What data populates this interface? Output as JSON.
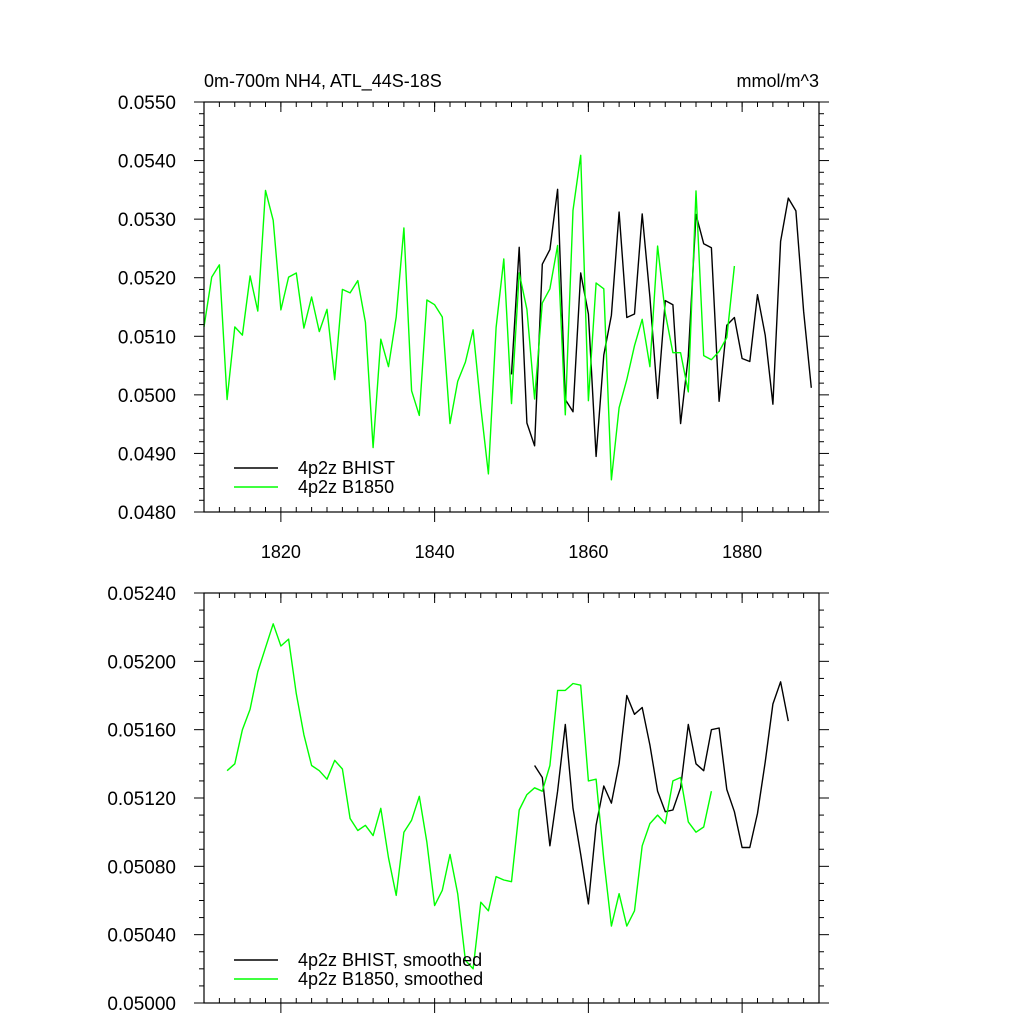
{
  "chart_data": [
    {
      "type": "line",
      "title": "0m-700m NH4, ATL_44S-18S",
      "units": "mmol/m^3",
      "xlabel": "",
      "ylabel": "",
      "xlim": [
        1810,
        1890
      ],
      "ylim": [
        0.048,
        0.055
      ],
      "xticks": [
        1820,
        1840,
        1860,
        1880
      ],
      "xtick_labels": [
        "1820",
        "1840",
        "1860",
        "1880"
      ],
      "yticks": [
        0.048,
        0.049,
        0.05,
        0.051,
        0.052,
        0.053,
        0.054,
        0.055
      ],
      "ytick_labels": [
        "0.0480",
        "0.0490",
        "0.0500",
        "0.0510",
        "0.0520",
        "0.0530",
        "0.0540",
        "0.0550"
      ],
      "legend_position": "bottom-left",
      "series": [
        {
          "name": "4p2z BHIST",
          "color": "#000000",
          "x": [
            1850,
            1851,
            1852,
            1853,
            1854,
            1855,
            1856,
            1857,
            1858,
            1859,
            1860,
            1861,
            1862,
            1863,
            1864,
            1865,
            1866,
            1867,
            1868,
            1869,
            1870,
            1871,
            1872,
            1873,
            1874,
            1875,
            1876,
            1877,
            1878,
            1879,
            1880,
            1881,
            1882,
            1883,
            1884,
            1885,
            1886,
            1887,
            1888,
            1889
          ],
          "values": [
            0.05035,
            0.05252,
            0.04952,
            0.04913,
            0.05223,
            0.05248,
            0.05351,
            0.04992,
            0.04971,
            0.05208,
            0.05138,
            0.04895,
            0.05068,
            0.05136,
            0.05312,
            0.05132,
            0.05138,
            0.05309,
            0.05167,
            0.04994,
            0.05161,
            0.05154,
            0.04951,
            0.05066,
            0.05308,
            0.05258,
            0.05251,
            0.04989,
            0.05119,
            0.05132,
            0.05062,
            0.05057,
            0.05171,
            0.05102,
            0.04984,
            0.05262,
            0.05336,
            0.05314,
            0.05143,
            0.05012
          ]
        },
        {
          "name": "4p2z B1850",
          "color": "#00ff00",
          "x": [
            1810,
            1811,
            1812,
            1813,
            1814,
            1815,
            1816,
            1817,
            1818,
            1819,
            1820,
            1821,
            1822,
            1823,
            1824,
            1825,
            1826,
            1827,
            1828,
            1829,
            1830,
            1831,
            1832,
            1833,
            1834,
            1835,
            1836,
            1837,
            1838,
            1839,
            1840,
            1841,
            1842,
            1843,
            1844,
            1845,
            1846,
            1847,
            1848,
            1849,
            1850,
            1851,
            1852,
            1853,
            1854,
            1855,
            1856,
            1857,
            1858,
            1859,
            1860,
            1861,
            1862,
            1863,
            1864,
            1865,
            1866,
            1867,
            1868,
            1869,
            1870,
            1871,
            1872,
            1873,
            1874,
            1875,
            1876,
            1877,
            1878,
            1879
          ],
          "values": [
            0.05116,
            0.05201,
            0.05222,
            0.04992,
            0.05116,
            0.05102,
            0.05203,
            0.05143,
            0.05349,
            0.05298,
            0.05145,
            0.05201,
            0.05208,
            0.05114,
            0.05167,
            0.05108,
            0.05146,
            0.05026,
            0.0518,
            0.05174,
            0.05195,
            0.05124,
            0.0491,
            0.05095,
            0.05048,
            0.05133,
            0.05285,
            0.05007,
            0.04965,
            0.05162,
            0.05154,
            0.05133,
            0.04951,
            0.05023,
            0.05056,
            0.05111,
            0.04979,
            0.04865,
            0.05115,
            0.05232,
            0.04985,
            0.05208,
            0.05146,
            0.04993,
            0.05157,
            0.05181,
            0.05255,
            0.04966,
            0.05315,
            0.05409,
            0.0499,
            0.05191,
            0.05181,
            0.04855,
            0.04978,
            0.05026,
            0.05084,
            0.05129,
            0.05048,
            0.05254,
            0.05139,
            0.05072,
            0.05072,
            0.05005,
            0.05348,
            0.05067,
            0.0506,
            0.05074,
            0.05098,
            0.0522
          ]
        }
      ]
    },
    {
      "type": "line",
      "title": "",
      "xlabel": "",
      "ylabel": "",
      "xlim": [
        1810,
        1890
      ],
      "ylim": [
        0.05,
        0.0524
      ],
      "xticks": [
        1820,
        1840,
        1860,
        1880
      ],
      "yticks": [
        0.05,
        0.0504,
        0.0508,
        0.0512,
        0.0516,
        0.052,
        0.0524
      ],
      "ytick_labels": [
        "0.05000",
        "0.05040",
        "0.05080",
        "0.05120",
        "0.05160",
        "0.05200",
        "0.05240"
      ],
      "legend_position": "bottom-left",
      "series": [
        {
          "name": "4p2z BHIST, smoothed",
          "color": "#000000",
          "x": [
            1853,
            1854,
            1855,
            1856,
            1857,
            1858,
            1859,
            1860,
            1861,
            1862,
            1863,
            1864,
            1865,
            1866,
            1867,
            1868,
            1869,
            1870,
            1871,
            1872,
            1873,
            1874,
            1875,
            1876,
            1877,
            1878,
            1879,
            1880,
            1881,
            1882,
            1883,
            1884,
            1885,
            1886
          ],
          "values": [
            0.05139,
            0.05132,
            0.05092,
            0.05124,
            0.05163,
            0.05114,
            0.05087,
            0.05058,
            0.05104,
            0.05127,
            0.05117,
            0.0514,
            0.0518,
            0.05169,
            0.05173,
            0.05151,
            0.05124,
            0.05112,
            0.05113,
            0.05126,
            0.05163,
            0.0514,
            0.05136,
            0.0516,
            0.05161,
            0.05125,
            0.05112,
            0.05091,
            0.05091,
            0.05111,
            0.05141,
            0.05175,
            0.05188,
            0.05165
          ]
        },
        {
          "name": "4p2z B1850, smoothed",
          "color": "#00ff00",
          "x": [
            1813,
            1814,
            1815,
            1816,
            1817,
            1818,
            1819,
            1820,
            1821,
            1822,
            1823,
            1824,
            1825,
            1826,
            1827,
            1828,
            1829,
            1830,
            1831,
            1832,
            1833,
            1834,
            1835,
            1836,
            1837,
            1838,
            1839,
            1840,
            1841,
            1842,
            1843,
            1844,
            1845,
            1846,
            1847,
            1848,
            1849,
            1850,
            1851,
            1852,
            1853,
            1854,
            1855,
            1856,
            1857,
            1858,
            1859,
            1860,
            1861,
            1862,
            1863,
            1864,
            1865,
            1866,
            1867,
            1868,
            1869,
            1870,
            1871,
            1872,
            1873,
            1874,
            1875,
            1876
          ],
          "values": [
            0.05136,
            0.0514,
            0.0516,
            0.05172,
            0.05194,
            0.05208,
            0.05222,
            0.05209,
            0.05213,
            0.05181,
            0.05157,
            0.05139,
            0.05136,
            0.05131,
            0.05142,
            0.05137,
            0.05108,
            0.05101,
            0.05104,
            0.05098,
            0.05114,
            0.05085,
            0.05063,
            0.051,
            0.05107,
            0.05121,
            0.05094,
            0.05057,
            0.05066,
            0.05087,
            0.05064,
            0.05025,
            0.0502,
            0.05059,
            0.05054,
            0.05074,
            0.05072,
            0.05071,
            0.05113,
            0.05122,
            0.05126,
            0.05124,
            0.05139,
            0.05183,
            0.05183,
            0.05187,
            0.05186,
            0.0513,
            0.05131,
            0.05084,
            0.05045,
            0.05064,
            0.05045,
            0.05054,
            0.05092,
            0.05105,
            0.0511,
            0.05105,
            0.0513,
            0.05132,
            0.05106,
            0.051,
            0.05103,
            0.05124
          ]
        }
      ]
    }
  ]
}
